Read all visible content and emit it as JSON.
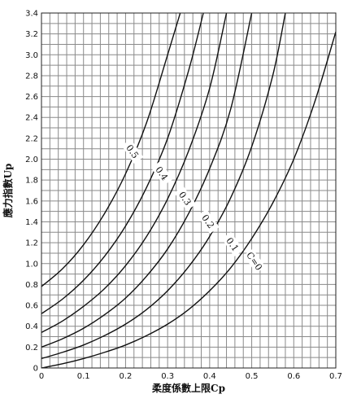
{
  "chart_data": {
    "type": "line",
    "xlabel": "柔度係數上限Cp",
    "ylabel": "應力指數Up",
    "xlim": [
      0,
      0.7
    ],
    "ylim": [
      0,
      3.4
    ],
    "x_ticks": [
      "0",
      "0.1",
      "0.2",
      "0.3",
      "0.4",
      "0.5",
      "0.6",
      "0.7"
    ],
    "y_ticks": [
      "0",
      "0.2",
      "0.4",
      "0.6",
      "0.8",
      "1.0",
      "1.2",
      "1.4",
      "1.6",
      "1.8",
      "2.0",
      "2.2",
      "2.4",
      "2.6",
      "2.8",
      "3.0",
      "3.2",
      "3.4"
    ],
    "grid": true,
    "series": [
      {
        "name": "0.5",
        "x": [
          0,
          0.05,
          0.1,
          0.15,
          0.2,
          0.25,
          0.3,
          0.33
        ],
        "y": [
          0.78,
          0.95,
          1.18,
          1.48,
          1.86,
          2.35,
          3.0,
          3.4
        ]
      },
      {
        "name": "0.4",
        "x": [
          0,
          0.05,
          0.1,
          0.15,
          0.2,
          0.25,
          0.3,
          0.35,
          0.385
        ],
        "y": [
          0.52,
          0.66,
          0.84,
          1.07,
          1.36,
          1.73,
          2.2,
          2.85,
          3.4
        ]
      },
      {
        "name": "0.3",
        "x": [
          0,
          0.05,
          0.1,
          0.15,
          0.2,
          0.25,
          0.3,
          0.35,
          0.4,
          0.44
        ],
        "y": [
          0.34,
          0.45,
          0.59,
          0.76,
          0.98,
          1.26,
          1.62,
          2.08,
          2.68,
          3.4
        ]
      },
      {
        "name": "0.2",
        "x": [
          0,
          0.05,
          0.1,
          0.15,
          0.2,
          0.25,
          0.3,
          0.35,
          0.4,
          0.45,
          0.5
        ],
        "y": [
          0.2,
          0.28,
          0.38,
          0.51,
          0.67,
          0.88,
          1.14,
          1.48,
          1.91,
          2.48,
          3.4
        ]
      },
      {
        "name": "0.1",
        "x": [
          0,
          0.05,
          0.1,
          0.15,
          0.2,
          0.25,
          0.3,
          0.35,
          0.4,
          0.45,
          0.5,
          0.55,
          0.58
        ],
        "y": [
          0.09,
          0.15,
          0.22,
          0.31,
          0.42,
          0.56,
          0.74,
          0.97,
          1.26,
          1.63,
          2.12,
          2.8,
          3.4
        ]
      },
      {
        "name": "C=0",
        "x": [
          0,
          0.05,
          0.1,
          0.15,
          0.2,
          0.25,
          0.3,
          0.35,
          0.4,
          0.45,
          0.5,
          0.55,
          0.6,
          0.65,
          0.7
        ],
        "y": [
          0.0,
          0.04,
          0.09,
          0.15,
          0.22,
          0.31,
          0.42,
          0.56,
          0.74,
          0.96,
          1.24,
          1.58,
          2.0,
          2.55,
          3.22
        ]
      }
    ],
    "curve_labels": [
      {
        "text": "0.5",
        "x": 0.215,
        "y": 2.07
      },
      {
        "text": "0.4",
        "x": 0.285,
        "y": 1.86
      },
      {
        "text": "0.3",
        "x": 0.34,
        "y": 1.62
      },
      {
        "text": "0.2",
        "x": 0.395,
        "y": 1.4
      },
      {
        "text": "0.1",
        "x": 0.453,
        "y": 1.18
      },
      {
        "text": "C=0",
        "x": 0.505,
        "y": 1.02
      }
    ]
  }
}
